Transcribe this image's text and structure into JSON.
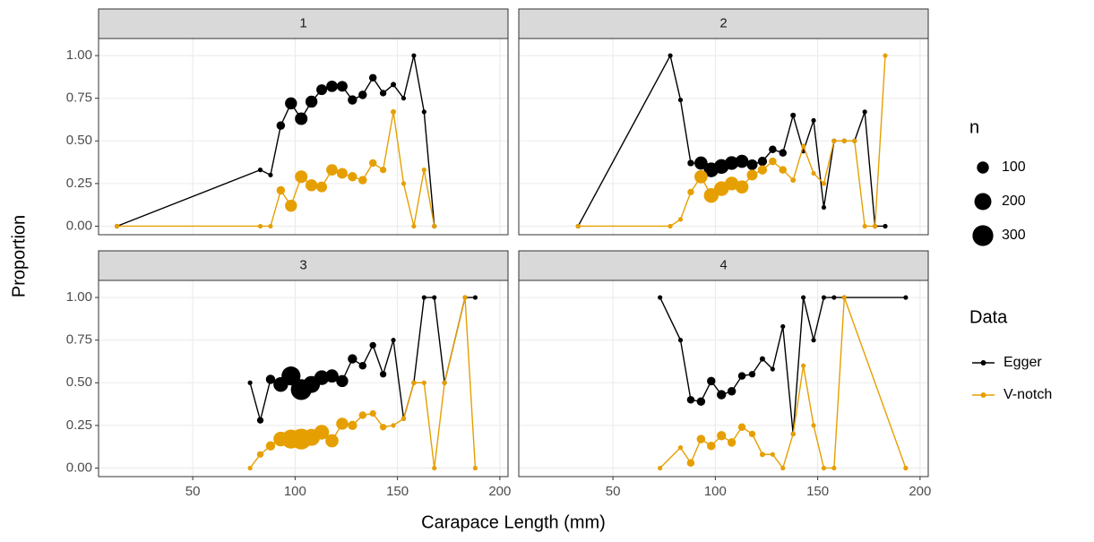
{
  "chart_data": {
    "type": "line",
    "x_label": "Carapace Length (mm)",
    "y_label": "Proportion",
    "xlim": [
      4,
      204
    ],
    "ylim": [
      -0.05,
      1.1
    ],
    "xticks": [
      50,
      100,
      150,
      200
    ],
    "yticks": [
      {
        "value": 0,
        "label": "0.00"
      },
      {
        "value": 0.25,
        "label": "0.25"
      },
      {
        "value": 0.5,
        "label": "0.50"
      },
      {
        "value": 0.75,
        "label": "0.75"
      },
      {
        "value": 1,
        "label": "1.00"
      }
    ],
    "grid": true,
    "size_legend": {
      "title": "n",
      "values": [
        100,
        200,
        300
      ]
    },
    "legend_title": "Data",
    "series": [
      {
        "name": "Egger",
        "color": "#000000"
      },
      {
        "name": "V-notch",
        "color": "#E69F00"
      }
    ],
    "panels": [
      {
        "title": "1",
        "data": [
          {
            "x": [
              13,
              83,
              88,
              93,
              98,
              103,
              108,
              113,
              118,
              123,
              128,
              133,
              138,
              143,
              148,
              153,
              158,
              163,
              168
            ],
            "values": [
              0,
              0.33,
              0.3,
              0.59,
              0.72,
              0.63,
              0.73,
              0.8,
              0.82,
              0.82,
              0.74,
              0.77,
              0.87,
              0.78,
              0.83,
              0.75,
              1.0,
              0.67,
              0
            ],
            "sizes": [
              3,
              3,
              10,
              50,
              100,
              110,
              100,
              80,
              90,
              80,
              60,
              50,
              40,
              30,
              20,
              10,
              3,
              3,
              2
            ]
          },
          {
            "x": [
              13,
              83,
              88,
              93,
              98,
              103,
              108,
              113,
              118,
              123,
              128,
              133,
              138,
              143,
              148,
              153,
              158,
              163,
              168
            ],
            "values": [
              0,
              0,
              0,
              0.21,
              0.12,
              0.29,
              0.24,
              0.23,
              0.33,
              0.31,
              0.29,
              0.27,
              0.37,
              0.33,
              0.67,
              0.25,
              0,
              0.33,
              0
            ],
            "sizes": [
              3,
              3,
              10,
              50,
              100,
              110,
              100,
              80,
              90,
              80,
              60,
              50,
              40,
              30,
              20,
              10,
              3,
              3,
              2
            ]
          }
        ]
      },
      {
        "title": "2",
        "data": [
          {
            "x": [
              33,
              78,
              83,
              88,
              93,
              98,
              103,
              108,
              113,
              118,
              123,
              128,
              133,
              138,
              143,
              148,
              153,
              158,
              163,
              168,
              173,
              178,
              183
            ],
            "values": [
              0,
              1.0,
              0.74,
              0.37,
              0.37,
              0.33,
              0.35,
              0.37,
              0.38,
              0.36,
              0.38,
              0.45,
              0.43,
              0.65,
              0.44,
              0.62,
              0.11,
              0.5,
              0.5,
              0.5,
              0.67,
              0,
              0
            ],
            "sizes": [
              2,
              2,
              5,
              30,
              120,
              150,
              150,
              130,
              120,
              80,
              60,
              40,
              40,
              20,
              10,
              5,
              5,
              3,
              3,
              3,
              2,
              2,
              2
            ]
          },
          {
            "x": [
              33,
              78,
              83,
              88,
              93,
              98,
              103,
              108,
              113,
              118,
              123,
              128,
              133,
              138,
              143,
              148,
              153,
              158,
              163,
              168,
              173,
              178,
              183
            ],
            "values": [
              0,
              0,
              0.04,
              0.2,
              0.29,
              0.18,
              0.22,
              0.25,
              0.23,
              0.3,
              0.33,
              0.38,
              0.33,
              0.27,
              0.47,
              0.31,
              0.25,
              0.5,
              0.5,
              0.5,
              0,
              0,
              1.0
            ],
            "sizes": [
              2,
              2,
              5,
              30,
              120,
              150,
              150,
              130,
              120,
              80,
              60,
              40,
              40,
              20,
              10,
              5,
              5,
              3,
              3,
              3,
              2,
              2,
              2
            ]
          }
        ]
      },
      {
        "title": "3",
        "data": [
          {
            "x": [
              78,
              83,
              88,
              93,
              98,
              103,
              108,
              113,
              118,
              123,
              128,
              133,
              138,
              143,
              148,
              153,
              158,
              163,
              168,
              173,
              183,
              188
            ],
            "values": [
              0.5,
              0.28,
              0.52,
              0.49,
              0.54,
              0.46,
              0.49,
              0.53,
              0.54,
              0.51,
              0.64,
              0.6,
              0.72,
              0.55,
              0.75,
              0.29,
              0.5,
              1.0,
              1.0,
              0.5,
              1.0,
              1.0
            ],
            "sizes": [
              3,
              30,
              60,
              150,
              250,
              300,
              200,
              150,
              120,
              100,
              60,
              40,
              30,
              30,
              10,
              5,
              3,
              3,
              3,
              2,
              2,
              2
            ]
          },
          {
            "x": [
              78,
              83,
              88,
              93,
              98,
              103,
              108,
              113,
              118,
              123,
              128,
              133,
              138,
              143,
              148,
              153,
              158,
              163,
              168,
              173,
              183,
              188
            ],
            "values": [
              0,
              0.08,
              0.13,
              0.17,
              0.17,
              0.17,
              0.18,
              0.21,
              0.16,
              0.26,
              0.25,
              0.31,
              0.32,
              0.24,
              0.25,
              0.29,
              0.5,
              0.5,
              0,
              0.5,
              1.0,
              0
            ],
            "sizes": [
              3,
              30,
              60,
              150,
              250,
              300,
              200,
              150,
              120,
              100,
              60,
              40,
              30,
              30,
              10,
              5,
              3,
              3,
              3,
              2,
              2,
              2
            ]
          }
        ]
      },
      {
        "title": "4",
        "data": [
          {
            "x": [
              73,
              83,
              88,
              93,
              98,
              103,
              108,
              113,
              118,
              123,
              128,
              133,
              138,
              143,
              148,
              153,
              158,
              163,
              193
            ],
            "values": [
              1.0,
              0.75,
              0.4,
              0.39,
              0.51,
              0.43,
              0.45,
              0.54,
              0.55,
              0.64,
              0.58,
              0.83,
              0.2,
              1.0,
              0.75,
              1.0,
              1.0,
              1.0,
              1.0
            ],
            "sizes": [
              2,
              5,
              40,
              50,
              50,
              60,
              50,
              40,
              30,
              20,
              15,
              10,
              5,
              5,
              5,
              3,
              2,
              2,
              2
            ]
          },
          {
            "x": [
              73,
              83,
              88,
              93,
              98,
              103,
              108,
              113,
              118,
              123,
              128,
              133,
              138,
              143,
              148,
              153,
              158,
              163,
              193
            ],
            "values": [
              0,
              0.12,
              0.03,
              0.17,
              0.13,
              0.19,
              0.15,
              0.24,
              0.2,
              0.08,
              0.08,
              0,
              0.2,
              0.6,
              0.25,
              0,
              0,
              1.0,
              0
            ],
            "sizes": [
              2,
              5,
              40,
              50,
              50,
              60,
              50,
              40,
              30,
              20,
              15,
              10,
              5,
              5,
              5,
              3,
              2,
              2,
              2
            ]
          }
        ]
      }
    ]
  }
}
